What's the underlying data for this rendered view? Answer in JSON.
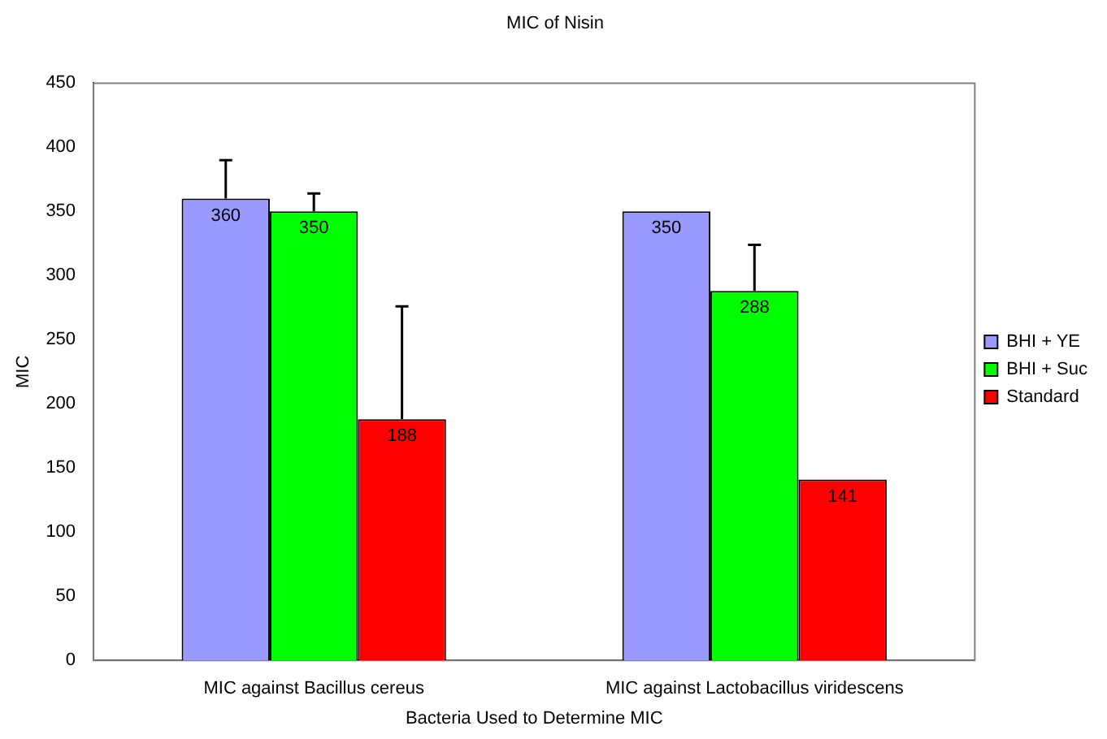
{
  "chart_data": {
    "type": "bar",
    "title": "MIC of Nisin",
    "xlabel": "Bacteria Used to Determine MIC",
    "ylabel": "MIC",
    "categories": [
      "MIC against Bacillus cereus",
      "MIC against Lactobacillus viridescens"
    ],
    "series": [
      {
        "name": "BHI + YE",
        "color": "#9999ff",
        "values": [
          360,
          350
        ],
        "errors": [
          [
            360,
            390
          ],
          null
        ]
      },
      {
        "name": "BHI + Suc",
        "color": "#00ff00",
        "values": [
          350,
          288
        ],
        "errors": [
          [
            350,
            364
          ],
          [
            288,
            324
          ]
        ]
      },
      {
        "name": "Standard",
        "color": "#ff0000",
        "values": [
          188,
          141
        ],
        "errors": [
          [
            188,
            276
          ],
          null
        ]
      }
    ],
    "ylim": [
      0,
      450
    ],
    "yticks": [
      0,
      50,
      100,
      150,
      200,
      250,
      300,
      350,
      400,
      450
    ],
    "grid": false,
    "legend": "right",
    "data_labels": true
  }
}
